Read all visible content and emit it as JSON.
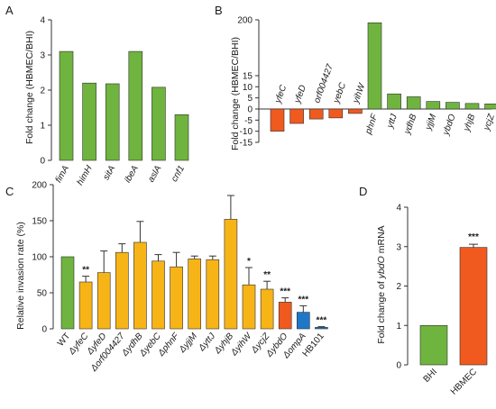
{
  "chart_data": [
    {
      "panel": "A",
      "type": "bar",
      "ylabel": "Fold change (HBMEC/BHI)",
      "ylim": [
        0,
        4
      ],
      "yticks": [
        0,
        1,
        2,
        3,
        4
      ],
      "categories": [
        "fimA",
        "himH",
        "sitA",
        "ibeA",
        "aslA",
        "cnf1"
      ],
      "values": [
        3.1,
        2.2,
        2.18,
        3.1,
        2.08,
        1.3
      ],
      "bar_color": "#6fb43f"
    },
    {
      "panel": "B",
      "type": "bar",
      "ylabel": "Fold change (HBMEC/BHI)",
      "ylim": [
        -15,
        200
      ],
      "yticks": [
        -15,
        -10,
        -5,
        0,
        5,
        10,
        15
      ],
      "scale": "piecewise: -15..15 linear, upper axis compressed to 200",
      "categories": [
        "yfeC",
        "yfeD",
        "orf004427",
        "yebC",
        "yihW",
        "phnF",
        "yttJ",
        "ydhB",
        "yjjM",
        "ybdO",
        "yhjB",
        "ycjZ"
      ],
      "values": [
        -10,
        -6.5,
        -4.5,
        -4,
        -2,
        190,
        6.8,
        5.5,
        3.4,
        3.0,
        2.5,
        2.3
      ],
      "colors": {
        "up": "#6fb43f",
        "down": "#f05a1e"
      }
    },
    {
      "panel": "C",
      "type": "bar",
      "ylabel": "Relative invasion rate (%)",
      "ylim": [
        0,
        200
      ],
      "yticks": [
        0,
        50,
        100,
        150,
        200
      ],
      "categories": [
        "WT",
        "ΔyfeC",
        "ΔyfeD",
        "Δorf004427",
        "ΔydhB",
        "ΔyebC",
        "ΔphnF",
        "ΔyjjM",
        "ΔyttJ",
        "ΔyhjB",
        "ΔyihW",
        "ΔycjZ",
        "ΔybdO",
        "ΔompA",
        "HB101"
      ],
      "values": [
        100,
        65,
        78,
        106,
        120,
        94,
        86,
        97,
        96,
        152,
        61,
        55,
        37,
        23,
        2
      ],
      "errors": [
        0,
        8,
        30,
        12,
        29,
        9,
        20,
        4,
        5,
        33,
        24,
        11,
        6,
        9,
        1
      ],
      "significance": [
        "",
        "**",
        "",
        "",
        "",
        "",
        "",
        "",
        "",
        "",
        "*",
        "**",
        "***",
        "***",
        "***"
      ],
      "bar_colors": [
        "#6fb43f",
        "#f7b417",
        "#f7b417",
        "#f7b417",
        "#f7b417",
        "#f7b417",
        "#f7b417",
        "#f7b417",
        "#f7b417",
        "#f7b417",
        "#f7b417",
        "#f7b417",
        "#f05a1e",
        "#1f77c7",
        "#1f77c7"
      ]
    },
    {
      "panel": "D",
      "type": "bar",
      "ylabel": "Fold change of ybdO mRNA",
      "ylim": [
        0,
        4
      ],
      "yticks": [
        0,
        1,
        2,
        3,
        4
      ],
      "categories": [
        "BHI",
        "HBMEC"
      ],
      "values": [
        1.0,
        2.98
      ],
      "errors": [
        0,
        0.08
      ],
      "significance": [
        "",
        "***"
      ],
      "bar_colors": [
        "#6fb43f",
        "#f05a1e"
      ]
    }
  ],
  "panels": {
    "a": {
      "letter": "A"
    },
    "b": {
      "letter": "B"
    },
    "c": {
      "letter": "C"
    },
    "d": {
      "letter": "D"
    }
  },
  "labels": {
    "fold_change_a": "Fold change (HBMEC/BHI)",
    "fold_change_b": "Fold change (HBMEC/BHI)",
    "invasion": "Relative invasion rate (%)",
    "ybdo_mrna_prefix": "Fold change of ",
    "ybdo_mrna_gene": "ybdO",
    "ybdo_mrna_suffix": " mRNA",
    "b_axis_top": "200"
  }
}
